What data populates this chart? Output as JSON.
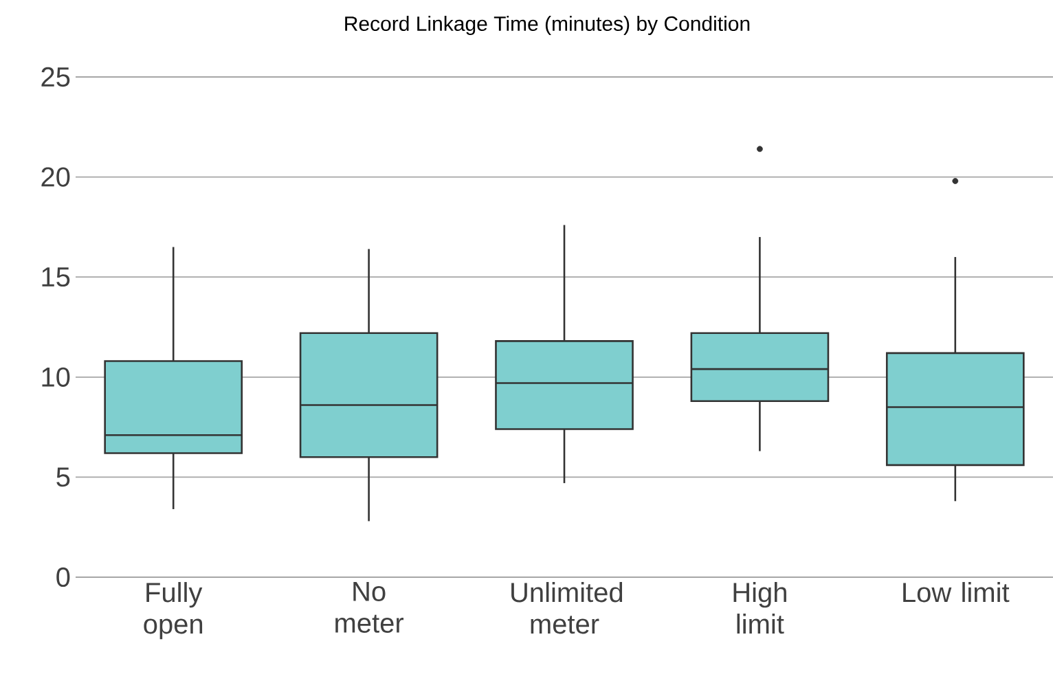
{
  "chart_data": {
    "type": "box",
    "title": "Record Linkage Time (minutes) by Condition",
    "categories": [
      "Fully open",
      "No meter",
      "Unlimited meter",
      "High limit",
      "Low limit"
    ],
    "boxes": [
      {
        "low": 3.4,
        "q1": 6.2,
        "median": 7.1,
        "q3": 10.8,
        "high": 16.5
      },
      {
        "low": 2.8,
        "q1": 6.0,
        "median": 8.6,
        "q3": 12.2,
        "high": 16.4
      },
      {
        "low": 4.7,
        "q1": 7.4,
        "median": 9.7,
        "q3": 11.8,
        "high": 17.6
      },
      {
        "low": 6.3,
        "q1": 8.8,
        "median": 10.4,
        "q3": 12.2,
        "high": 17.0,
        "outliers": [
          21.4
        ]
      },
      {
        "low": 3.8,
        "q1": 5.6,
        "median": 8.5,
        "q3": 11.2,
        "high": 16.0,
        "outliers": [
          19.8
        ]
      }
    ],
    "color": "#7fcfcf",
    "ylim": [
      0,
      25
    ],
    "yticks": [
      0,
      5,
      10,
      15,
      20,
      25
    ],
    "grid": "y"
  }
}
